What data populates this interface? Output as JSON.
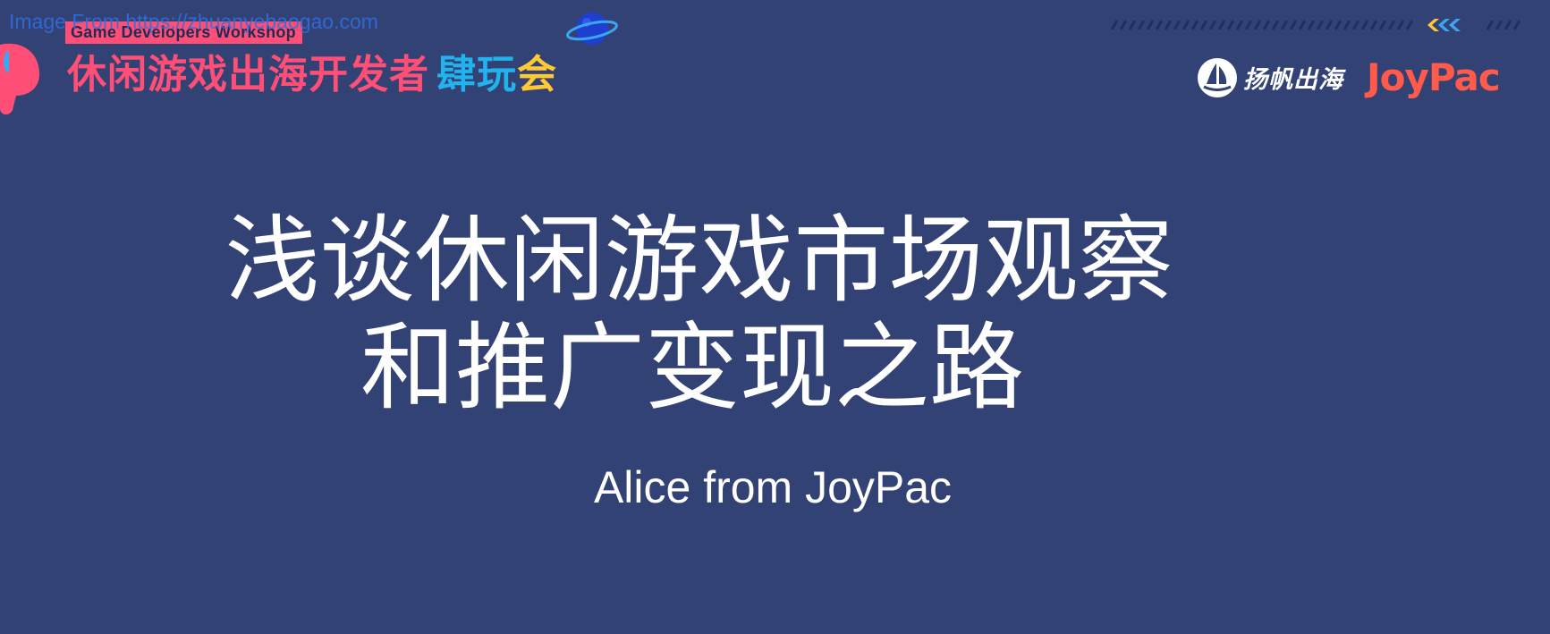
{
  "watermark": "Image From https://zhuanyebaogao.com",
  "header": {
    "badge": "Game Developers Workshop",
    "event_title_main": "休闲游戏出海开发者",
    "event_title_word1": "肆玩",
    "event_title_word2": "会",
    "sponsor_a": "扬帆出海",
    "sponsor_b": "JoyPac"
  },
  "slide": {
    "title_line1": "浅谈休闲游戏市场观察",
    "title_line2": "和推广变现之路",
    "subtitle": "Alice from JoyPac"
  },
  "colors": {
    "background": "#334275",
    "accent_pink": "#ff4f76",
    "accent_cyan": "#20b3ee",
    "accent_yellow": "#ffc933",
    "joypac_red": "#ff5a4a"
  },
  "icons": [
    "planet-icon",
    "sail-logo-icon",
    "stripe-decoration",
    "chevron-arrows-icon"
  ]
}
